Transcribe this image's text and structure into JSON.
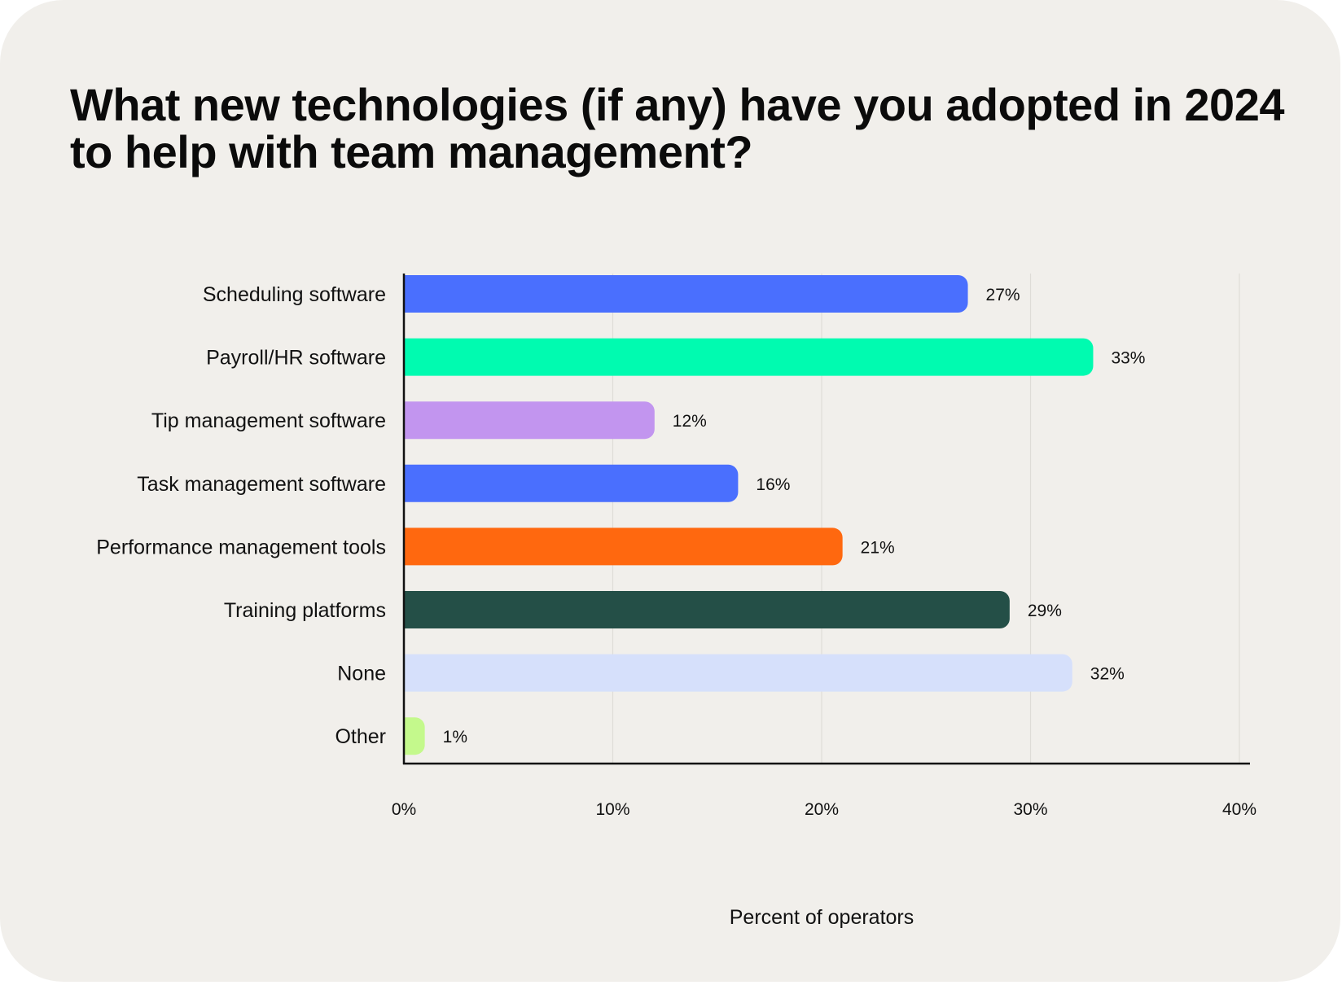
{
  "chart_data": {
    "type": "bar",
    "orientation": "horizontal",
    "title": "What new technologies (if any) have you adopted in 2024 to help with team management?",
    "xlabel": "Percent of operators",
    "ylabel": "",
    "categories": [
      "Scheduling software",
      "Payroll/HR software",
      "Tip management software",
      "Task management software",
      "Performance management tools",
      "Training platforms",
      "None",
      "Other"
    ],
    "values": [
      27,
      33,
      12,
      16,
      21,
      29,
      32,
      1
    ],
    "value_labels": [
      "27%",
      "33%",
      "12%",
      "16%",
      "21%",
      "29%",
      "32%",
      "1%"
    ],
    "colors": [
      "#4a6ffe",
      "#00fbb0",
      "#c295ef",
      "#4a6ffe",
      "#ff680f",
      "#244f47",
      "#d6e0fb",
      "#c4f98c"
    ],
    "xlim": [
      0,
      40
    ],
    "xticks": [
      0,
      10,
      20,
      30,
      40
    ],
    "xtick_labels": [
      "0%",
      "10%",
      "20%",
      "30%",
      "40%"
    ],
    "grid": "vertical",
    "legend": "none"
  }
}
